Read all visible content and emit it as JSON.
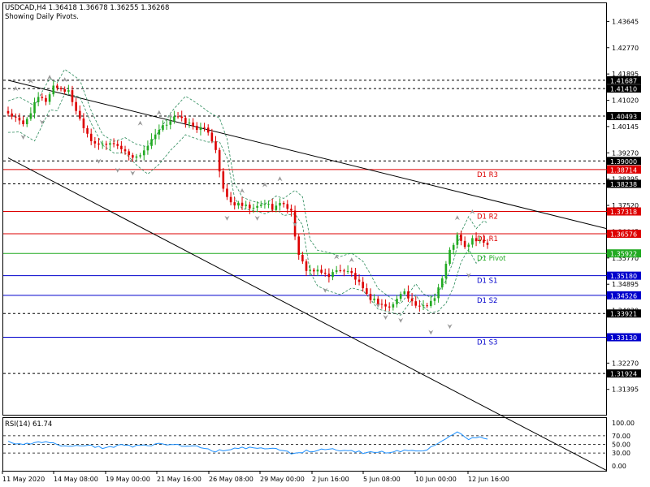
{
  "header": {
    "symbol_line": "USDCAD,H4  1.36418 1.36678 1.36255 1.36268",
    "subtitle": "Showing Daily Pivots."
  },
  "colors": {
    "bull": "#22aa22",
    "bear": "#dd0000",
    "resistance": "#dd0000",
    "support": "#0000cc",
    "pivot": "#22aa22",
    "dotted": "#000000",
    "envelope": "#2a8a5a",
    "fractal": "#9a9a9a",
    "rsi": "#1e90ff",
    "tag_black": "#000000"
  },
  "chart_data": [
    {
      "type": "candlestick",
      "symbol": "USDCAD",
      "timeframe": "H4",
      "ylim": [
        1.3055,
        1.4425
      ],
      "y_ticks": [
        "1.43645",
        "1.42770",
        "1.41895",
        "1.41020",
        "1.40145",
        "1.39270",
        "1.38395",
        "1.37520",
        "1.36645",
        "1.35770",
        "1.34895",
        "1.34020",
        "1.33145",
        "1.32270",
        "1.31395"
      ],
      "x_ticks": [
        "11 May 2020",
        "14 May 08:00",
        "19 May 00:00",
        "21 May 16:00",
        "26 May 08:00",
        "29 May 00:00",
        "2 Jun 16:00",
        "5 Jun 08:00",
        "10 Jun 00:00",
        "12 Jun 16:00"
      ],
      "pivot_lines": [
        {
          "name": "D1 R3",
          "value": 1.38714,
          "kind": "resistance"
        },
        {
          "name": "D1 R2",
          "value": 1.37318,
          "kind": "resistance"
        },
        {
          "name": "D1 R1",
          "value": 1.36576,
          "kind": "resistance"
        },
        {
          "name": "D1 Pivot",
          "value": 1.35922,
          "kind": "pivot"
        },
        {
          "name": "D1 S1",
          "value": 1.3518,
          "kind": "support"
        },
        {
          "name": "D1 S2",
          "value": 1.34526,
          "kind": "support"
        },
        {
          "name": "D1 S3",
          "value": 1.3313,
          "kind": "support"
        }
      ],
      "dotted_levels": [
        1.41687,
        1.4141,
        1.40493,
        1.39,
        1.38238,
        1.33921,
        1.31924
      ],
      "price_tags": [
        {
          "value": 1.41687,
          "text": "1.41687",
          "color": "black"
        },
        {
          "value": 1.4141,
          "text": "1.41410",
          "color": "black"
        },
        {
          "value": 1.40493,
          "text": "1.40493",
          "color": "black"
        },
        {
          "value": 1.39,
          "text": "1.39000",
          "color": "black"
        },
        {
          "value": 1.38714,
          "text": "1.38714",
          "color": "red"
        },
        {
          "value": 1.38238,
          "text": "1.38238",
          "color": "black"
        },
        {
          "value": 1.37318,
          "text": "1.37318",
          "color": "red"
        },
        {
          "value": 1.36576,
          "text": "1.36576",
          "color": "red"
        },
        {
          "value": 1.35922,
          "text": "1.35922",
          "color": "green"
        },
        {
          "value": 1.3518,
          "text": "1.35180",
          "color": "blue"
        },
        {
          "value": 1.34526,
          "text": "1.34526",
          "color": "blue"
        },
        {
          "value": 1.33921,
          "text": "1.33921",
          "color": "black"
        },
        {
          "value": 1.3313,
          "text": "1.33130",
          "color": "blue"
        },
        {
          "value": 1.31924,
          "text": "1.31924",
          "color": "black"
        }
      ],
      "trend_lines": [
        {
          "from": [
            0,
            1.41687
          ],
          "to": [
            128,
            1.377
          ]
        },
        {
          "from": [
            0,
            1.391
          ],
          "to": [
            128,
            1.307
          ]
        }
      ],
      "close_path": [
        [
          0,
          1.406
        ],
        [
          4,
          1.402
        ],
        [
          8,
          1.411
        ],
        [
          10,
          1.41
        ],
        [
          12,
          1.415
        ],
        [
          16,
          1.413
        ],
        [
          19,
          1.404
        ],
        [
          22,
          1.397
        ],
        [
          25,
          1.395
        ],
        [
          28,
          1.396
        ],
        [
          31,
          1.393
        ],
        [
          34,
          1.391
        ],
        [
          37,
          1.395
        ],
        [
          40,
          1.4
        ],
        [
          44,
          1.405
        ],
        [
          47,
          1.403
        ],
        [
          50,
          1.401
        ],
        [
          53,
          1.4
        ],
        [
          55,
          1.394
        ],
        [
          57,
          1.38
        ],
        [
          59,
          1.376
        ],
        [
          62,
          1.375
        ],
        [
          65,
          1.374
        ],
        [
          68,
          1.376
        ],
        [
          70,
          1.3745
        ],
        [
          73,
          1.376
        ],
        [
          75,
          1.373
        ],
        [
          77,
          1.358
        ],
        [
          79,
          1.354
        ],
        [
          82,
          1.353
        ],
        [
          85,
          1.352
        ],
        [
          88,
          1.354
        ],
        [
          91,
          1.3525
        ],
        [
          93,
          1.349
        ],
        [
          95,
          1.345
        ],
        [
          98,
          1.343
        ],
        [
          101,
          1.341
        ],
        [
          103,
          1.344
        ],
        [
          105,
          1.347
        ],
        [
          107,
          1.343
        ],
        [
          109,
          1.341
        ],
        [
          111,
          1.342
        ],
        [
          113,
          1.345
        ],
        [
          115,
          1.351
        ],
        [
          117,
          1.36
        ],
        [
          119,
          1.365
        ],
        [
          121,
          1.361
        ],
        [
          123,
          1.364
        ],
        [
          125,
          1.363
        ],
        [
          127,
          1.36268
        ]
      ],
      "fractals_up": [
        [
          2,
          1.413
        ],
        [
          6,
          1.4155
        ],
        [
          11,
          1.4168
        ],
        [
          15,
          1.416
        ],
        [
          35,
          1.4015
        ],
        [
          40,
          1.405
        ],
        [
          43,
          1.404
        ],
        [
          62,
          1.379
        ],
        [
          68,
          1.381
        ],
        [
          72,
          1.383
        ],
        [
          87,
          1.357
        ],
        [
          91,
          1.356
        ],
        [
          119,
          1.37
        ],
        [
          123,
          1.372
        ]
      ],
      "fractals_down": [
        [
          4,
          1.399
        ],
        [
          9,
          1.404
        ],
        [
          24,
          1.391
        ],
        [
          29,
          1.388
        ],
        [
          33,
          1.387
        ],
        [
          58,
          1.372
        ],
        [
          66,
          1.372
        ],
        [
          76,
          1.37
        ],
        [
          84,
          1.348
        ],
        [
          98,
          1.343
        ],
        [
          100,
          1.339
        ],
        [
          104,
          1.338
        ],
        [
          112,
          1.334
        ],
        [
          117,
          1.336
        ],
        [
          122,
          1.353
        ]
      ]
    },
    {
      "type": "line",
      "name": "RSI(14) 61.74",
      "ylim": [
        0,
        100
      ],
      "y_ticks": [
        "100.00",
        "70.00",
        "50.00",
        "30.00",
        "0.00"
      ],
      "levels": [
        70,
        50,
        30
      ],
      "path": [
        [
          0,
          55
        ],
        [
          5,
          50
        ],
        [
          10,
          55
        ],
        [
          15,
          45
        ],
        [
          20,
          48
        ],
        [
          25,
          42
        ],
        [
          30,
          48
        ],
        [
          35,
          45
        ],
        [
          40,
          52
        ],
        [
          45,
          48
        ],
        [
          50,
          45
        ],
        [
          55,
          35
        ],
        [
          60,
          40
        ],
        [
          65,
          42
        ],
        [
          70,
          40
        ],
        [
          75,
          30
        ],
        [
          80,
          35
        ],
        [
          85,
          38
        ],
        [
          90,
          36
        ],
        [
          95,
          30
        ],
        [
          100,
          32
        ],
        [
          105,
          36
        ],
        [
          110,
          35
        ],
        [
          113,
          45
        ],
        [
          116,
          62
        ],
        [
          119,
          78
        ],
        [
          122,
          62
        ],
        [
          125,
          66
        ],
        [
          127,
          61.74
        ]
      ]
    }
  ]
}
